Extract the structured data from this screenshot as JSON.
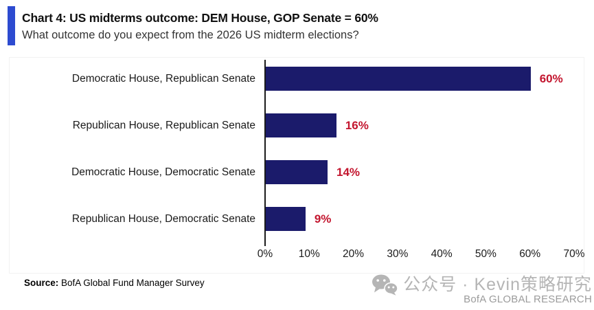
{
  "header": {
    "title": "Chart 4: US midterms outcome: DEM House, GOP Senate = 60%",
    "subtitle": "What outcome do you expect from the 2026 US midterm elections?"
  },
  "chart_data": {
    "type": "bar",
    "orientation": "horizontal",
    "categories": [
      "Democratic House, Republican Senate",
      "Republican House, Republican Senate",
      "Democratic House, Democratic Senate",
      "Republican House, Democratic Senate"
    ],
    "values": [
      60,
      16,
      14,
      9
    ],
    "value_labels": [
      "60%",
      "16%",
      "14%",
      "9%"
    ],
    "xlim": [
      0,
      70
    ],
    "x_ticks": [
      "0%",
      "10%",
      "20%",
      "30%",
      "40%",
      "50%",
      "60%",
      "70%"
    ],
    "grid": false,
    "legend": "none",
    "bar_color": "#1b1b6b",
    "value_label_color": "#c3152e"
  },
  "footer": {
    "source_label": "Source:",
    "source_text": " BofA Global Fund Manager Survey",
    "watermark": {
      "icon": "wechat-icon",
      "text": "公众号 · Kevin策略研究",
      "brand": "BofA GLOBAL RESEARCH"
    }
  },
  "colors": {
    "accent": "#2d4bd0",
    "bar": "#1b1b6b",
    "value": "#c3152e",
    "axis": "#1a1a1a",
    "watermark": "#b5b5b5"
  }
}
